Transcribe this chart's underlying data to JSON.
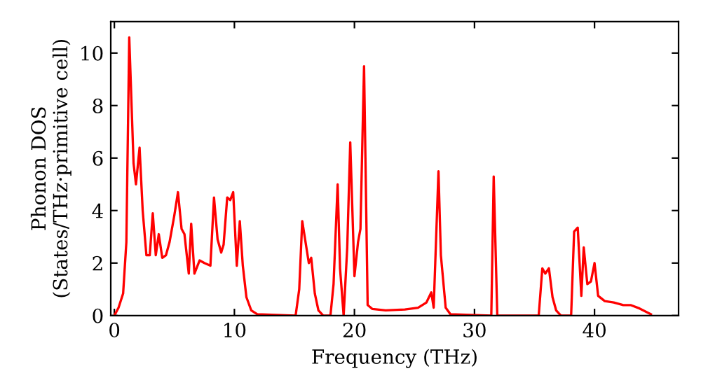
{
  "chart_data": {
    "type": "line",
    "xlabel": "Frequency (THz)",
    "ylabel": "Phonon DOS\n(States/THz·primitive cell)",
    "xlim": [
      -0.3,
      47
    ],
    "ylim": [
      0,
      11.2
    ],
    "xticks": [
      0,
      10,
      20,
      30,
      40
    ],
    "yticks": [
      0,
      2,
      4,
      6,
      8,
      10
    ],
    "grid": false,
    "legend": false,
    "marker": "none",
    "line_style": "solid",
    "series": [
      {
        "color": "#ff0000",
        "x": [
          0,
          0.35,
          0.73,
          1.0,
          1.24,
          1.6,
          1.8,
          2.1,
          2.36,
          2.67,
          2.95,
          3.2,
          3.45,
          3.7,
          3.99,
          4.3,
          4.6,
          4.99,
          5.3,
          5.6,
          5.84,
          6.2,
          6.4,
          6.67,
          7.1,
          7.5,
          8.0,
          8.3,
          8.6,
          8.9,
          9.1,
          9.4,
          9.65,
          9.9,
          10.2,
          10.45,
          10.7,
          11.0,
          11.4,
          11.9,
          15.1,
          15.4,
          15.65,
          16.2,
          16.4,
          16.7,
          17.0,
          17.4,
          18.0,
          18.26,
          18.6,
          18.8,
          19.1,
          19.4,
          19.65,
          20.0,
          20.3,
          20.5,
          20.8,
          21.1,
          21.5,
          22.6,
          24.2,
          25.3,
          26.0,
          26.4,
          26.6,
          27.0,
          27.2,
          27.6,
          28.0,
          31.4,
          31.6,
          31.9,
          35.35,
          35.65,
          35.9,
          36.2,
          36.5,
          36.8,
          37.2,
          38.05,
          38.3,
          38.6,
          38.9,
          39.1,
          39.4,
          39.7,
          40.0,
          40.3,
          40.85,
          41.6,
          42.4,
          43.0,
          43.75,
          44.7
        ],
        "values": [
          0,
          0.3,
          0.84,
          2.8,
          10.6,
          5.8,
          5.0,
          6.4,
          4.0,
          2.3,
          2.3,
          3.9,
          2.3,
          3.1,
          2.2,
          2.3,
          2.8,
          3.8,
          4.7,
          3.3,
          3.1,
          1.6,
          3.5,
          1.6,
          2.1,
          2.0,
          1.9,
          4.5,
          2.9,
          2.4,
          2.7,
          4.5,
          4.4,
          4.7,
          1.9,
          3.6,
          1.9,
          0.7,
          0.2,
          0.05,
          0,
          1.0,
          3.6,
          2.0,
          2.2,
          0.84,
          0.2,
          0,
          0,
          1.2,
          5.0,
          1.8,
          0,
          2.6,
          6.6,
          1.5,
          2.8,
          3.3,
          9.5,
          0.4,
          0.25,
          0.2,
          0.23,
          0.3,
          0.5,
          0.88,
          0.3,
          5.5,
          2.3,
          0.3,
          0.05,
          0,
          5.3,
          0,
          0,
          1.8,
          1.6,
          1.8,
          0.7,
          0.2,
          0,
          0,
          3.2,
          3.35,
          0.75,
          2.6,
          1.2,
          1.3,
          2.0,
          0.75,
          0.55,
          0.5,
          0.4,
          0.4,
          0.27,
          0.05
        ]
      }
    ]
  }
}
